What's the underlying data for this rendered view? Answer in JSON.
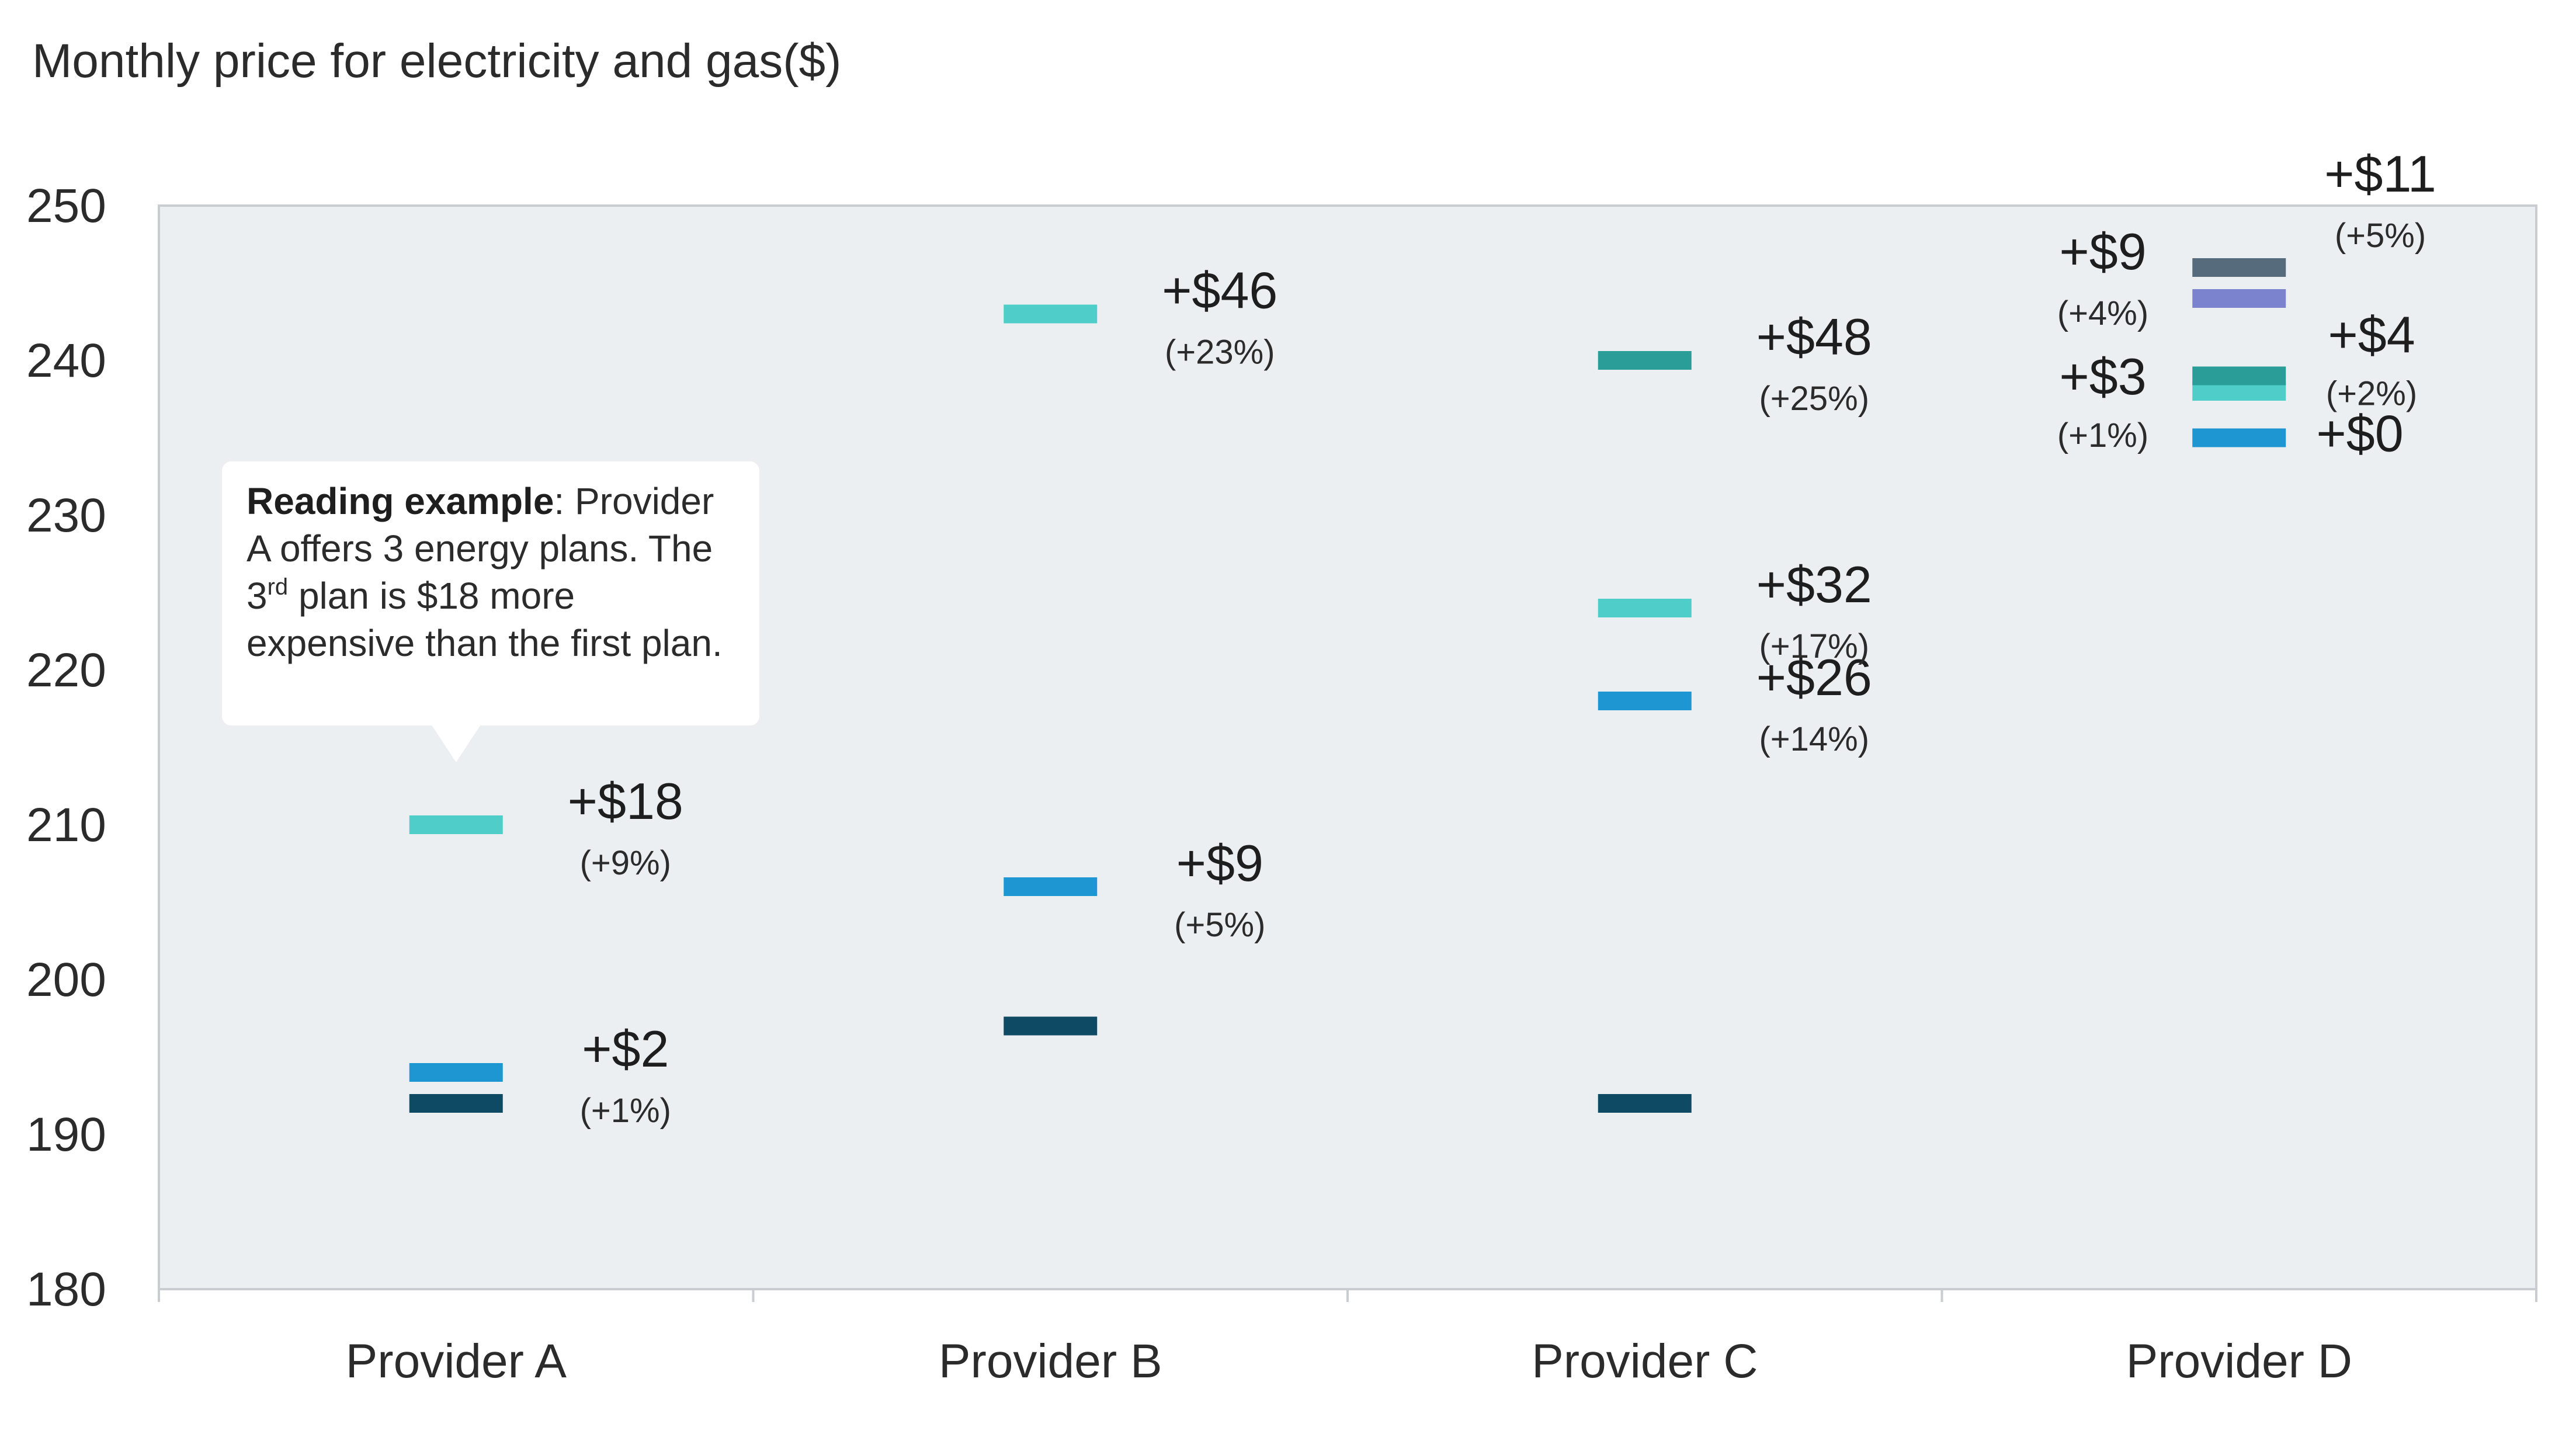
{
  "chart_data": {
    "type": "scatter",
    "title": "Monthly price for electricity and gas($)",
    "ylim": [
      180,
      250
    ],
    "yticks": [
      "250",
      "240",
      "230",
      "220",
      "210",
      "200",
      "190",
      "180"
    ],
    "categories": [
      "Provider A",
      "Provider B",
      "Provider C",
      "Provider D"
    ],
    "grid": false,
    "plans": [
      {
        "provider": "Provider A",
        "value": 192,
        "color": "#0e4a64",
        "diff": "",
        "pct": ""
      },
      {
        "provider": "Provider A",
        "value": 194,
        "color": "#1e96d1",
        "diff": "+$2",
        "pct": "(+1%)"
      },
      {
        "provider": "Provider A",
        "value": 210,
        "color": "#4fcdc9",
        "diff": "+$18",
        "pct": "(+9%)"
      },
      {
        "provider": "Provider B",
        "value": 197,
        "color": "#0e4a64",
        "diff": "",
        "pct": ""
      },
      {
        "provider": "Provider B",
        "value": 206,
        "color": "#1e96d1",
        "diff": "+$9",
        "pct": "(+5%)"
      },
      {
        "provider": "Provider B",
        "value": 243,
        "color": "#4fcdc9",
        "diff": "+$46",
        "pct": "(+23%)"
      },
      {
        "provider": "Provider C",
        "value": 192,
        "color": "#0e4a64",
        "diff": "",
        "pct": ""
      },
      {
        "provider": "Provider C",
        "value": 218,
        "color": "#1e96d1",
        "diff": "+$26",
        "pct": "(+14%)"
      },
      {
        "provider": "Provider C",
        "value": 224,
        "color": "#4fcdc9",
        "diff": "+$32",
        "pct": "(+17%)"
      },
      {
        "provider": "Provider C",
        "value": 240,
        "color": "#2a9d98",
        "diff": "+$48",
        "pct": "(+25%)"
      },
      {
        "provider": "Provider D",
        "value": 235,
        "color": "#1e96d1",
        "diff": "+$0",
        "pct": ""
      },
      {
        "provider": "Provider D",
        "value": 238,
        "color": "#4fcdc9",
        "diff": "+$3",
        "pct": "(+1%)"
      },
      {
        "provider": "Provider D",
        "value": 239,
        "color": "#2a9d98",
        "diff": "+$4",
        "pct": "(+2%)"
      },
      {
        "provider": "Provider D",
        "value": 244,
        "color": "#7b83cf",
        "diff": "+$9",
        "pct": "(+4%)"
      },
      {
        "provider": "Provider D",
        "value": 246,
        "color": "#566b7b",
        "diff": "+$11",
        "pct": "(+5%)"
      }
    ],
    "annotation": {
      "bold": "Reading example",
      "text_1": ": Provider A offers 3 energy plans. The 3",
      "superscript": "rd",
      "text_2": " plan is $18 more expensive than the first plan."
    }
  },
  "colors": {
    "plot_background": "#eceff2",
    "axis": "#c9cdd2",
    "callout_background": "#ffffff"
  }
}
